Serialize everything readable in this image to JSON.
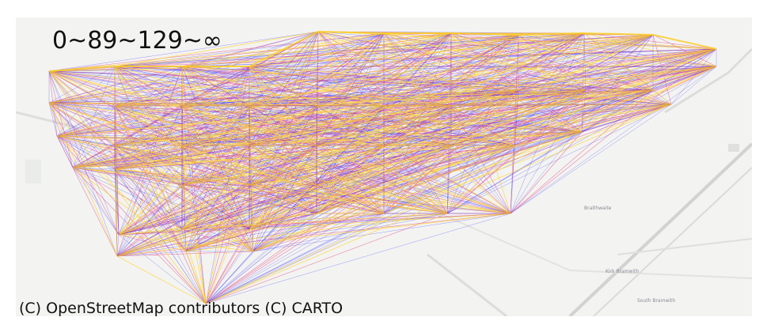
{
  "map": {
    "legend_label": "0~89~129~∞",
    "attribution": "(C) OpenStreetMap contributors (C) CARTO",
    "places": [
      "Braithwaite",
      "Kirk Bramwith",
      "South Bramwith"
    ],
    "colors": {
      "background": "#f3f3f1",
      "roads": "#d6d6d6",
      "water": "#e3e3e3",
      "low": "#2b2bff",
      "mid": "#e0206e",
      "high": "#ffd21f"
    }
  }
}
